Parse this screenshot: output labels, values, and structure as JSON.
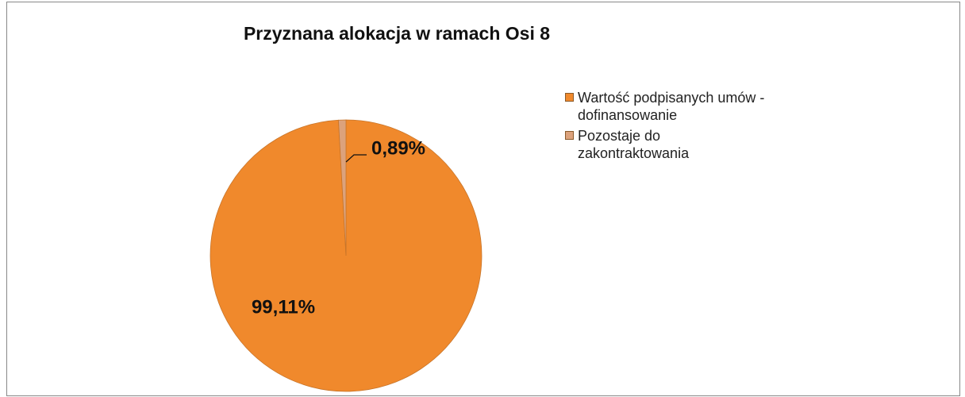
{
  "chart_data": {
    "type": "pie",
    "title": "Przyznana alokacja w ramach Osi 8",
    "categories": [
      "Wartość podpisanych umów - dofinansowanie",
      "Pozostaje do zakontraktowania"
    ],
    "values": [
      99.11,
      0.89
    ],
    "value_labels": [
      "99,11%",
      "0,89%"
    ],
    "colors": [
      "#f0892c",
      "#dca27c"
    ],
    "legend": "right"
  }
}
